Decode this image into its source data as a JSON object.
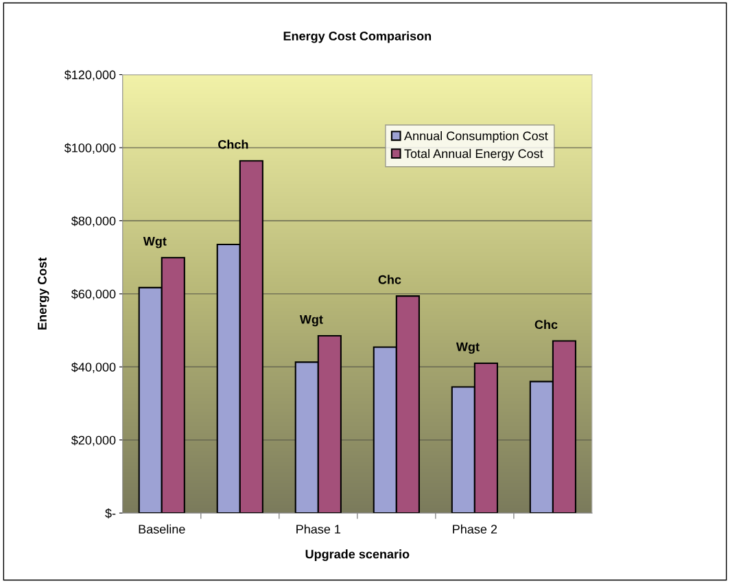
{
  "chart_data": {
    "type": "bar",
    "title": "Energy Cost Comparison",
    "xlabel": "Upgrade scenario",
    "ylabel": "Energy Cost",
    "categories": [
      "Baseline",
      null,
      "Phase 1",
      null,
      "Phase 2",
      null
    ],
    "series": [
      {
        "name": "Annual Consumption Cost",
        "color": "#9da2d4",
        "values": [
          61700,
          73500,
          41300,
          45400,
          34500,
          36000
        ]
      },
      {
        "name": "Total Annual Energy Cost",
        "color": "#a4507a",
        "values": [
          69900,
          96400,
          48500,
          59400,
          41000,
          47100
        ]
      }
    ],
    "annotations": [
      "Wgt",
      "Chch",
      "Wgt",
      "Chc",
      "Wgt",
      "Chc"
    ],
    "ylim": [
      0,
      120000
    ],
    "yticks": [
      {
        "value": 0,
        "label": "$-"
      },
      {
        "value": 20000,
        "label": "$20,000"
      },
      {
        "value": 40000,
        "label": "$40,000"
      },
      {
        "value": 60000,
        "label": "$60,000"
      },
      {
        "value": 80000,
        "label": "$80,000"
      },
      {
        "value": 100000,
        "label": "$100,000"
      },
      {
        "value": 120000,
        "label": "$120,000"
      }
    ],
    "grid": "y",
    "legend": "top right"
  }
}
